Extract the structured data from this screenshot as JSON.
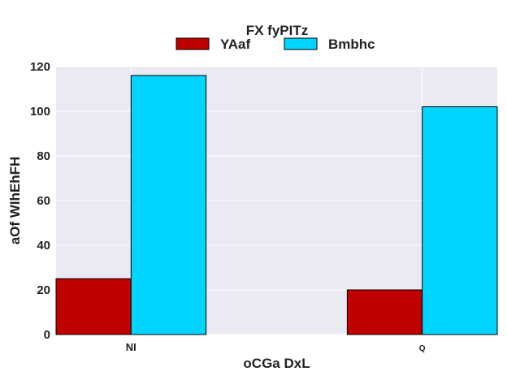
{
  "chart_data": {
    "type": "bar",
    "categories": [
      "NI",
      "Q"
    ],
    "series": [
      {
        "name": "YAaf",
        "values": [
          25,
          20
        ],
        "color": "#c00000"
      },
      {
        "name": "Bmbhc",
        "values": [
          116,
          102
        ],
        "color": "#00d5ff"
      }
    ],
    "legend_title": "FX fyPITz",
    "xlabel": "oCGa DxL",
    "ylabel": "aOf WIhEhFH",
    "ylim": [
      0,
      120
    ],
    "yticks": [
      "0",
      "20",
      "40",
      "60",
      "80",
      "100",
      "120"
    ],
    "grid": true,
    "legend_position": "top-center",
    "background_color": "#eaeaf2"
  }
}
